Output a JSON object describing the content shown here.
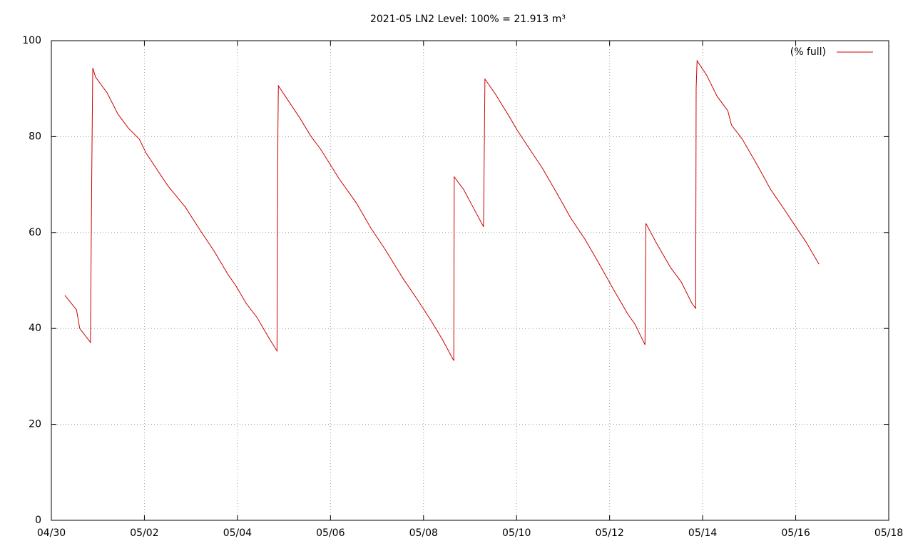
{
  "chart_data": {
    "type": "line",
    "title": "2021-05 LN2 Level: 100% = 21.913 m³",
    "x": [
      0.29,
      0.54,
      0.61,
      0.84,
      0.87,
      0.89,
      0.95,
      1.2,
      1.43,
      1.66,
      1.89,
      2.04,
      2.5,
      2.88,
      3.19,
      3.5,
      3.8,
      3.96,
      4.19,
      4.42,
      4.69,
      4.85,
      4.86,
      4.87,
      4.88,
      5.03,
      5.34,
      5.57,
      5.8,
      6.18,
      6.56,
      6.87,
      7.18,
      7.56,
      7.87,
      8.17,
      8.4,
      8.65,
      8.66,
      8.86,
      9.02,
      9.29,
      9.32,
      9.55,
      9.86,
      10.01,
      10.24,
      10.55,
      10.86,
      11.16,
      11.47,
      11.78,
      12.08,
      12.39,
      12.55,
      12.76,
      12.78,
      13.0,
      13.31,
      13.54,
      13.77,
      13.85,
      13.86,
      13.88,
      14.08,
      14.31,
      14.54,
      14.62,
      14.85,
      15.16,
      15.46,
      15.77,
      15.92,
      16.23,
      16.5
    ],
    "series": [
      {
        "name": "(% full)",
        "color": "#cc0000",
        "values": [
          46.9,
          43.9,
          40.0,
          37.1,
          74.0,
          94.3,
          92.4,
          89.1,
          84.7,
          81.7,
          79.5,
          76.5,
          69.8,
          65.3,
          60.6,
          56.1,
          51.2,
          49.0,
          45.2,
          42.3,
          37.8,
          35.3,
          54.5,
          81.4,
          90.6,
          88.4,
          83.9,
          80.2,
          77.2,
          71.3,
          66.1,
          60.9,
          56.4,
          50.4,
          46.0,
          41.5,
          37.8,
          33.3,
          71.6,
          69.0,
          66.1,
          61.2,
          92.0,
          88.8,
          83.9,
          81.4,
          78.0,
          73.5,
          68.3,
          63.1,
          58.6,
          53.4,
          48.2,
          43.0,
          40.8,
          36.6,
          61.9,
          57.9,
          52.7,
          49.7,
          45.2,
          44.2,
          90.0,
          95.8,
          92.9,
          88.4,
          85.4,
          82.4,
          79.5,
          74.3,
          69.0,
          64.6,
          62.4,
          57.9,
          53.4
        ]
      }
    ],
    "xlim": [
      0,
      18
    ],
    "xticks": [
      {
        "value": 0,
        "label": "04/30"
      },
      {
        "value": 2,
        "label": "05/02"
      },
      {
        "value": 4,
        "label": "05/04"
      },
      {
        "value": 6,
        "label": "05/06"
      },
      {
        "value": 8,
        "label": "05/08"
      },
      {
        "value": 10,
        "label": "05/10"
      },
      {
        "value": 12,
        "label": "05/12"
      },
      {
        "value": 14,
        "label": "05/14"
      },
      {
        "value": 16,
        "label": "05/16"
      },
      {
        "value": 18,
        "label": "05/18"
      }
    ],
    "ylim": [
      0,
      100
    ],
    "yticks": [
      0,
      20,
      40,
      60,
      80,
      100
    ],
    "grid": true,
    "legend": "top-right"
  }
}
